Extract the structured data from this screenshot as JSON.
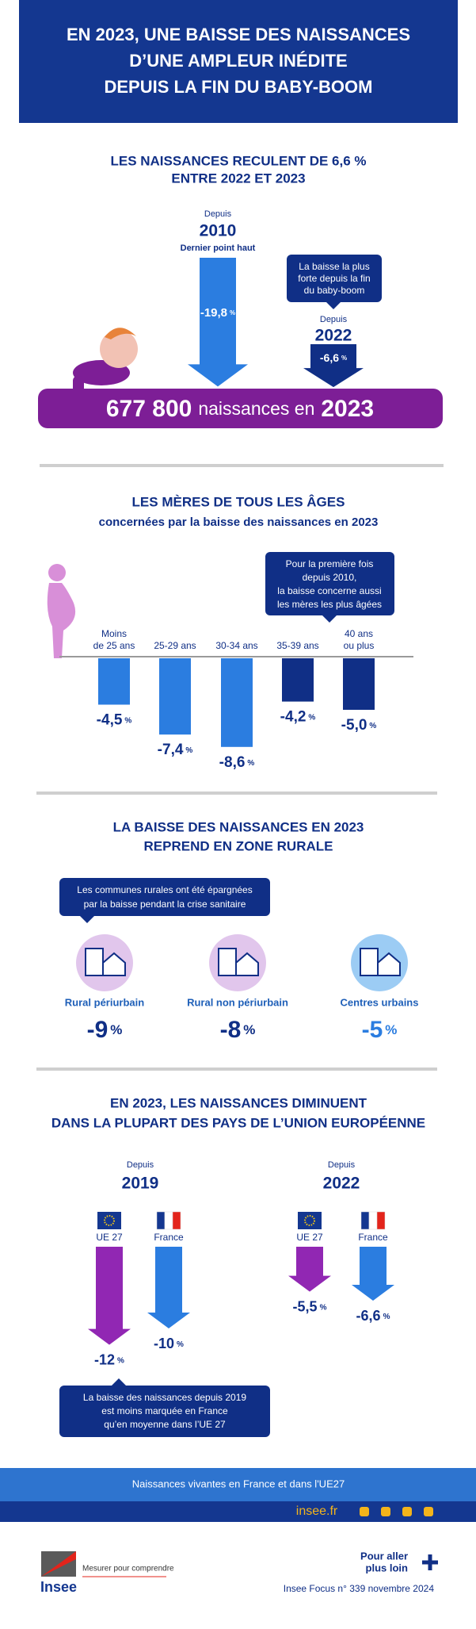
{
  "header": {
    "title": [
      "EN 2023, UNE BAISSE DES NAISSANCES",
      "D’UNE AMPLEUR INÉDITE",
      "DEPUIS LA FIN DU BABY-BOOM"
    ]
  },
  "births": {
    "title": [
      "LES NAISSANCES RECULENT DE 6,6 %",
      "ENTRE 2022 ET 2023"
    ],
    "periods": [
      {
        "label": "Depuis",
        "year": "2010",
        "note": "Dernier point haut",
        "value": -19.8,
        "value_label": "-19,8"
      },
      {
        "label": "Depuis",
        "year": "2022",
        "value": -6.6,
        "value_label": "-6,6"
      }
    ],
    "unit": "%",
    "callout": [
      "La baisse la plus",
      "forte depuis la fin",
      "du baby-boom"
    ],
    "total": "677 800",
    "total_text": "naissances en",
    "total_year": "2023"
  },
  "mothers": {
    "title": "LES MÈRES DE TOUS LES ÂGES",
    "subtitle": "concernées par la baisse des naissances en 2023",
    "callout": [
      "Pour la première fois",
      "depuis 2010,",
      "la baisse concerne aussi",
      "les mères les plus âgées"
    ],
    "categories": [
      [
        "Moins",
        "de 25 ans"
      ],
      [
        "25-29 ans"
      ],
      [
        "30-34 ans"
      ],
      [
        "35-39 ans"
      ],
      [
        "40 ans",
        "ou plus"
      ]
    ],
    "values": [
      -4.5,
      -7.4,
      -8.6,
      -4.2,
      -5.0
    ],
    "value_labels": [
      "-4,5",
      "-7,4",
      "-8,6",
      "-4,2",
      "-5,0"
    ],
    "colors": [
      "#2b7de0",
      "#2b7de0",
      "#2b7de0",
      "#102f86",
      "#102f86"
    ],
    "unit": "%"
  },
  "rural": {
    "title": [
      "LA BAISSE DES NAISSANCES EN 2023",
      "REPREND EN ZONE RURALE"
    ],
    "callout": [
      "Les communes rurales ont été épargnées",
      "par la baisse pendant la crise sanitaire"
    ],
    "items": [
      {
        "label": "Rural périurbain",
        "value": "-9",
        "color": "#102f86"
      },
      {
        "label": "Rural non périurbain",
        "value": "-8",
        "color": "#102f86"
      },
      {
        "label": "Centres urbains",
        "value": "-5",
        "color": "#2b7de0"
      }
    ],
    "unit": "%"
  },
  "eu": {
    "title": [
      "EN 2023, LES NAISSANCES DIMINUENT",
      "DANS LA PLUPART DES PAYS DE L’UNION EUROPÉENNE"
    ],
    "groups": [
      {
        "label": "Depuis",
        "year": "2019",
        "series": [
          {
            "name": "UE 27",
            "color": "#9127b3",
            "value": -12,
            "value_label": "-12"
          },
          {
            "name": "France",
            "color": "#2b7de0",
            "value": -10,
            "value_label": "-10"
          }
        ]
      },
      {
        "label": "Depuis",
        "year": "2022",
        "series": [
          {
            "name": "UE 27",
            "color": "#9127b3",
            "value": -5.5,
            "value_label": "-5,5"
          },
          {
            "name": "France",
            "color": "#2b7de0",
            "value": -6.6,
            "value_label": "-6,6"
          }
        ]
      }
    ],
    "unit": "%",
    "callout": [
      "La baisse des naissances depuis 2019",
      "est moins marquée en France",
      "qu’en moyenne dans l’UE 27"
    ]
  },
  "footer": {
    "source": "Naissances vivantes en France et dans l'UE27",
    "site": "insee.fr",
    "more": [
      "Pour aller",
      "plus loin"
    ],
    "reference": "Insee Focus n° 339 novembre 2024",
    "logo": "Insee",
    "tagline": "Mesurer pour comprendre"
  }
}
